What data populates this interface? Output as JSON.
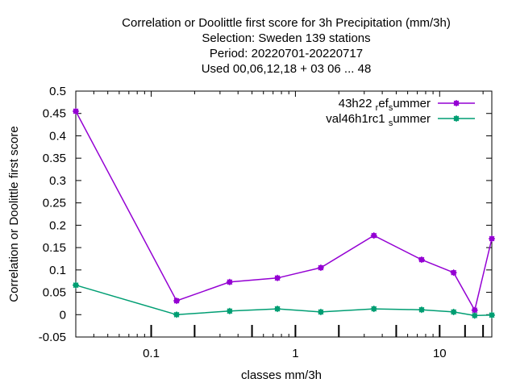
{
  "title_lines": [
    "Correlation or Doolittle first score  for 3h Precipitation (mm/3h)",
    "Selection: Sweden    139 stations",
    "Period: 20220701-20220717",
    "Used  00,06,12,18  + 03 06 ... 48"
  ],
  "chart_data": {
    "type": "line",
    "xlabel": "classes mm/3h",
    "ylabel": "Correlation or Doolittle first score",
    "x_scale": "log",
    "xlim": [
      0.03,
      23
    ],
    "ylim": [
      -0.05,
      0.5
    ],
    "y_ticks": [
      -0.05,
      0,
      0.05,
      0.1,
      0.15,
      0.2,
      0.25,
      0.3,
      0.35,
      0.4,
      0.45,
      0.5
    ],
    "y_tick_labels": [
      "-0.05",
      "0",
      "0.05",
      "0.1",
      "0.15",
      "0.2",
      "0.25",
      "0.3",
      "0.35",
      "0.4",
      "0.45",
      "0.5"
    ],
    "x_major_ticks": [
      0.1,
      1,
      10
    ],
    "x_major_tick_labels": [
      "0.1",
      "1",
      "10"
    ],
    "x_class_ticks": [
      0.1,
      0.2,
      0.5,
      1,
      2,
      5,
      10,
      15,
      20
    ],
    "grid": false,
    "legend_position": "top-right",
    "series": [
      {
        "name_main": "43h22 ",
        "name_sub1": "r",
        "name_mid": "ef",
        "name_sub2": "s",
        "name_end": "ummer",
        "color": "#9400d3",
        "x": [
          0.03,
          0.15,
          0.35,
          0.75,
          1.5,
          3.5,
          7.5,
          12.5,
          17.5,
          23
        ],
        "values": [
          0.455,
          0.031,
          0.073,
          0.082,
          0.105,
          0.177,
          0.123,
          0.094,
          0.01,
          0.17
        ]
      },
      {
        "name_main": "val46h1rc1 ",
        "name_sub1": "s",
        "name_mid": "",
        "name_sub2": "",
        "name_end": "ummer",
        "color": "#009e73",
        "x": [
          0.03,
          0.15,
          0.35,
          0.75,
          1.5,
          3.5,
          7.5,
          12.5,
          17.5,
          23
        ],
        "values": [
          0.066,
          0.0,
          0.008,
          0.013,
          0.006,
          0.013,
          0.011,
          0.006,
          -0.002,
          -0.001
        ]
      }
    ]
  }
}
